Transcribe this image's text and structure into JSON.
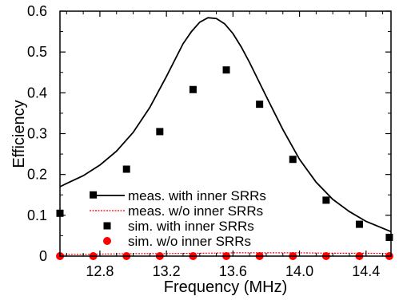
{
  "chart_data": {
    "type": "scatter",
    "xlabel": "Frequency (MHz)",
    "ylabel": "Efficiency",
    "xlim": [
      12.56,
      14.55
    ],
    "ylim": [
      0,
      0.6
    ],
    "x_ticks": [
      12.8,
      13.2,
      13.6,
      14.0,
      14.4
    ],
    "x_tick_labels": [
      "12.8",
      "13.2",
      "13.6",
      "14.0",
      "14.4"
    ],
    "y_ticks": [
      0,
      0.1,
      0.2,
      0.3,
      0.4,
      0.5,
      0.6
    ],
    "y_tick_labels": [
      "0",
      "0.1",
      "0.2",
      "0.3",
      "0.4",
      "0.5",
      "0.6"
    ],
    "grid": false,
    "legend_position": "lower-left",
    "series": [
      {
        "name": "meas. with inner SRRs",
        "style": "solid-line",
        "color": "#000000",
        "x": [
          12.56,
          12.6,
          12.7,
          12.8,
          12.9,
          13.0,
          13.1,
          13.2,
          13.3,
          13.35,
          13.4,
          13.45,
          13.5,
          13.55,
          13.6,
          13.65,
          13.7,
          13.8,
          13.9,
          14.0,
          14.1,
          14.2,
          14.3,
          14.4,
          14.55
        ],
        "y": [
          0.17,
          0.178,
          0.197,
          0.223,
          0.257,
          0.303,
          0.364,
          0.44,
          0.52,
          0.55,
          0.573,
          0.584,
          0.582,
          0.569,
          0.545,
          0.512,
          0.474,
          0.391,
          0.31,
          0.237,
          0.181,
          0.139,
          0.109,
          0.085,
          0.06
        ]
      },
      {
        "name": "meas. w/o inner SRRs",
        "style": "dashed-line",
        "color": "#ff0000",
        "x": [
          12.56,
          12.8,
          13.0,
          13.2,
          13.4,
          13.6,
          13.8,
          14.0,
          14.2,
          14.4,
          14.55
        ],
        "y": [
          0.004,
          0.005,
          0.006,
          0.006,
          0.007,
          0.008,
          0.008,
          0.008,
          0.007,
          0.007,
          0.006
        ]
      },
      {
        "name": "sim. with inner SRRs",
        "style": "square-marker",
        "color": "#000000",
        "x": [
          12.56,
          12.76,
          12.96,
          13.16,
          13.36,
          13.56,
          13.76,
          13.96,
          14.16,
          14.36,
          14.54
        ],
        "y": [
          0.105,
          0.15,
          0.213,
          0.305,
          0.408,
          0.456,
          0.372,
          0.237,
          0.137,
          0.078,
          0.046
        ]
      },
      {
        "name": "sim. w/o inner SRRs",
        "style": "circle-marker",
        "color": "#ff0000",
        "x": [
          12.56,
          12.76,
          12.96,
          13.16,
          13.36,
          13.56,
          13.76,
          13.96,
          14.16,
          14.36,
          14.54
        ],
        "y": [
          0.0,
          0.0,
          0.0,
          0.0,
          0.0,
          0.0,
          0.0,
          0.0,
          0.0,
          0.0,
          0.0
        ]
      }
    ]
  }
}
